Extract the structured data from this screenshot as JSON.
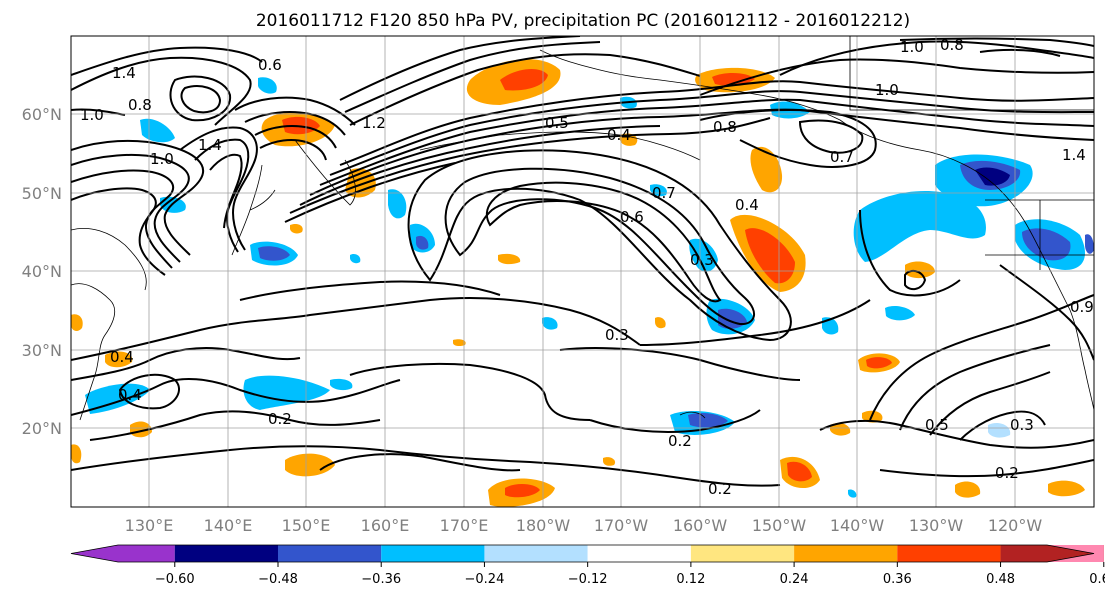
{
  "title": "2016011712 F120 850 hPa PV, precipitation PC (2016012112 - 2016012212)",
  "lat_labels": [
    "60°N",
    "50°N",
    "40°N",
    "30°N",
    "20°N"
  ],
  "lon_labels": [
    "130°E",
    "140°E",
    "150°E",
    "160°E",
    "170°E",
    "180°W",
    "170°W",
    "160°W",
    "150°W",
    "140°W",
    "130°W",
    "120°W"
  ],
  "colorbar": {
    "colors": [
      "#9933cc",
      "#000080",
      "#3355cc",
      "#00bfff",
      "#b3e0ff",
      "#ffffff",
      "#ffe680",
      "#ffa500",
      "#ff4000",
      "#b22222",
      "#ff88b0"
    ],
    "ticks": [
      "−0.60",
      "−0.48",
      "−0.36",
      "−0.24",
      "−0.12",
      "0.12",
      "0.24",
      "0.36",
      "0.48",
      "0.60"
    ]
  },
  "contour_labels": [
    "1.4",
    "1.0",
    "0.8",
    "0.6",
    "1.0",
    "1.4",
    "1.2",
    "0.5",
    "0.4",
    "0.8",
    "1.0",
    "0.7",
    "1.0",
    "0.8",
    "1.4",
    "0.7",
    "0.6",
    "0.4",
    "0.3",
    "0.9",
    "0.3",
    "0.5",
    "0.4",
    "0.2",
    "0.2",
    "0.2",
    "0.5",
    "0.3",
    "0.2",
    "0.2"
  ],
  "colors": {
    "grid": "#a0a0a0",
    "contour": "#000000",
    "frame": "#000000"
  }
}
